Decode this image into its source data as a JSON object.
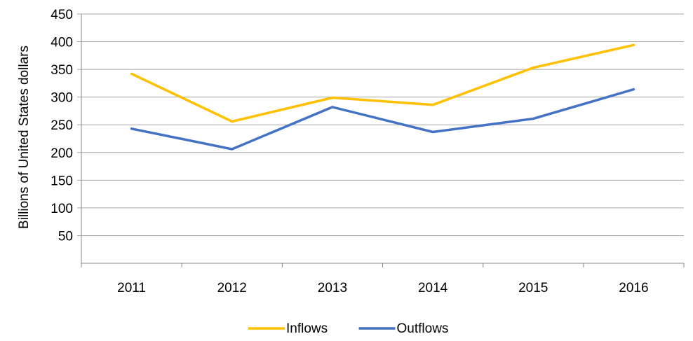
{
  "chart_data": {
    "type": "line",
    "categories": [
      "2011",
      "2012",
      "2013",
      "2014",
      "2015",
      "2016"
    ],
    "series": [
      {
        "name": "Inflows",
        "values": [
          342,
          256,
          299,
          286,
          353,
          394
        ],
        "color": "#FFC000"
      },
      {
        "name": "Outflows",
        "values": [
          243,
          206,
          282,
          237,
          261,
          314
        ],
        "color": "#4472C4"
      }
    ],
    "title": "",
    "xlabel": "",
    "ylabel": "Billions of United States dollars",
    "ylim": [
      0,
      450
    ],
    "yticks": [
      "50",
      "100",
      "150",
      "200",
      "250",
      "300",
      "350",
      "400",
      "450"
    ],
    "grid": true,
    "legend_position": "bottom"
  }
}
